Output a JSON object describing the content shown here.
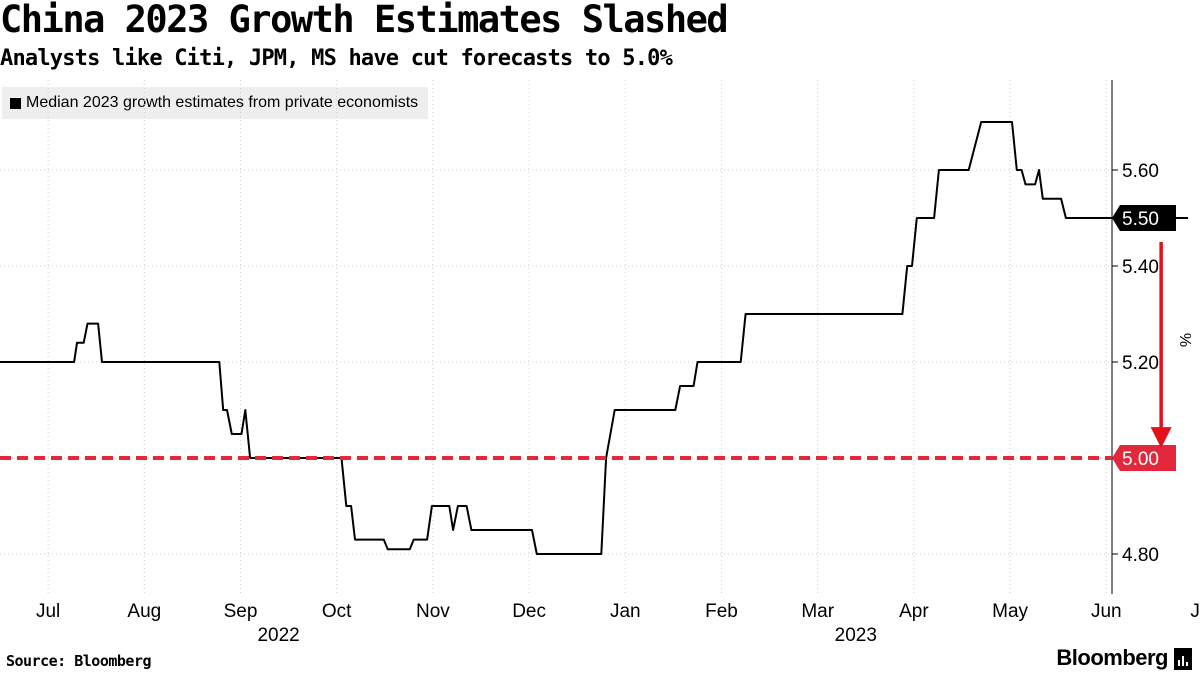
{
  "title": "China 2023 Growth Estimates Slashed",
  "subtitle": "Analysts like Citi, JPM, MS have cut forecasts to 5.0%",
  "source": "Source: Bloomberg",
  "brand": "Bloomberg",
  "colors": {
    "line": "#000000",
    "threshold": "#e3283c",
    "arrow": "#e3111c",
    "grid": "#cccccc",
    "legend_bg": "#eeeeee"
  },
  "chart_data": {
    "type": "line",
    "legend_position": "top-left",
    "grid": true,
    "ylabel": "%",
    "ylim": [
      4.7,
      5.78
    ],
    "y_ticks": [
      4.8,
      5.0,
      5.2,
      5.4,
      5.6
    ],
    "y_tick_labels": [
      "4.80",
      "5.00",
      "5.20",
      "5.40",
      "5.60"
    ],
    "x_range": [
      0.0,
      12.35
    ],
    "x_ticks": [
      {
        "month": 0.5,
        "label": "Jul"
      },
      {
        "month": 1.5,
        "label": "Aug"
      },
      {
        "month": 2.5,
        "label": "Sep"
      },
      {
        "month": 3.5,
        "label": "Oct"
      },
      {
        "month": 4.5,
        "label": "Nov"
      },
      {
        "month": 5.5,
        "label": "Dec"
      },
      {
        "month": 6.5,
        "label": "Jan"
      },
      {
        "month": 7.5,
        "label": "Feb"
      },
      {
        "month": 8.5,
        "label": "Mar"
      },
      {
        "month": 9.5,
        "label": "Apr"
      },
      {
        "month": 10.5,
        "label": "May"
      },
      {
        "month": 11.5,
        "label": "Jun"
      },
      {
        "month": 12.5,
        "label": "Jul"
      }
    ],
    "year_labels": [
      {
        "month": 3.0,
        "label": "2022"
      },
      {
        "month": 9.0,
        "label": "2023"
      }
    ],
    "series": [
      {
        "name": "Median 2023 growth estimates from private economists",
        "last_value_label": "5.50",
        "points": [
          [
            0.0,
            5.2
          ],
          [
            0.77,
            5.2
          ],
          [
            0.8,
            5.24
          ],
          [
            0.87,
            5.24
          ],
          [
            0.91,
            5.28
          ],
          [
            1.02,
            5.28
          ],
          [
            1.06,
            5.2
          ],
          [
            2.28,
            5.2
          ],
          [
            2.32,
            5.1
          ],
          [
            2.36,
            5.1
          ],
          [
            2.41,
            5.05
          ],
          [
            2.51,
            5.05
          ],
          [
            2.55,
            5.1
          ],
          [
            2.6,
            5.0
          ],
          [
            3.55,
            5.0
          ],
          [
            3.6,
            4.9
          ],
          [
            3.65,
            4.9
          ],
          [
            3.69,
            4.83
          ],
          [
            3.99,
            4.83
          ],
          [
            4.03,
            4.81
          ],
          [
            4.26,
            4.81
          ],
          [
            4.3,
            4.83
          ],
          [
            4.44,
            4.83
          ],
          [
            4.49,
            4.9
          ],
          [
            4.67,
            4.9
          ],
          [
            4.71,
            4.85
          ],
          [
            4.76,
            4.9
          ],
          [
            4.85,
            4.9
          ],
          [
            4.9,
            4.85
          ],
          [
            5.53,
            4.85
          ],
          [
            5.58,
            4.8
          ],
          [
            6.25,
            4.8
          ],
          [
            6.3,
            5.0
          ],
          [
            6.39,
            5.1
          ],
          [
            7.02,
            5.1
          ],
          [
            7.07,
            5.15
          ],
          [
            7.21,
            5.15
          ],
          [
            7.25,
            5.2
          ],
          [
            7.7,
            5.2
          ],
          [
            7.75,
            5.3
          ],
          [
            9.38,
            5.3
          ],
          [
            9.43,
            5.4
          ],
          [
            9.48,
            5.4
          ],
          [
            9.53,
            5.5
          ],
          [
            9.71,
            5.5
          ],
          [
            9.76,
            5.6
          ],
          [
            10.07,
            5.6
          ],
          [
            10.2,
            5.7
          ],
          [
            10.52,
            5.7
          ],
          [
            10.57,
            5.6
          ],
          [
            10.62,
            5.6
          ],
          [
            10.66,
            5.57
          ],
          [
            10.76,
            5.57
          ],
          [
            10.8,
            5.6
          ],
          [
            10.84,
            5.54
          ],
          [
            11.03,
            5.54
          ],
          [
            11.08,
            5.5
          ],
          [
            12.35,
            5.5
          ]
        ]
      }
    ],
    "annotations": [
      {
        "type": "threshold_line",
        "value": 5.0,
        "label": "5.00"
      },
      {
        "type": "arrow",
        "from": 5.45,
        "to": 5.03,
        "at_month": 12.07
      }
    ]
  }
}
